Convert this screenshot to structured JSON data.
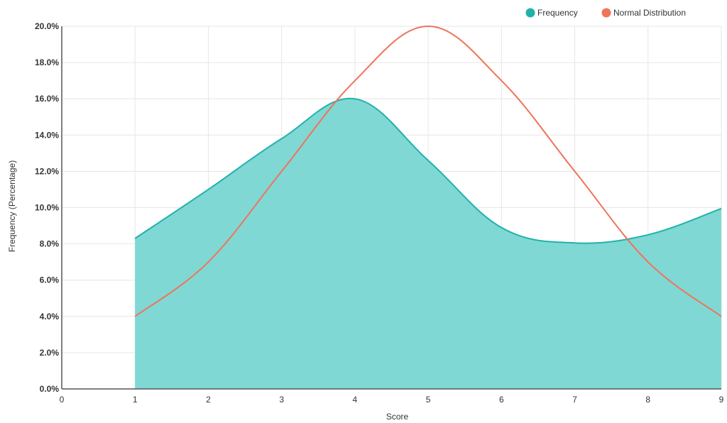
{
  "chart_data": {
    "type": "area",
    "title": "",
    "xlabel": "Score",
    "ylabel": "Frequency (Percentage)",
    "xlim": [
      0,
      9
    ],
    "ylim": [
      0,
      20
    ],
    "x_ticks": [
      0,
      1,
      2,
      3,
      4,
      5,
      6,
      7,
      8,
      9
    ],
    "y_ticks": [
      0,
      2,
      4,
      6,
      8,
      10,
      12,
      14,
      16,
      18,
      20
    ],
    "y_tick_labels": [
      "0.0%",
      "2.0%",
      "4.0%",
      "6.0%",
      "8.0%",
      "10.0%",
      "12.0%",
      "14.0%",
      "16.0%",
      "18.0%",
      "20.0%"
    ],
    "grid": true,
    "legend_position": "top-right",
    "series": [
      {
        "name": "Frequency",
        "type": "area",
        "color": "#20b2aa",
        "fill": "#7fd8d4",
        "x": [
          1,
          2,
          3,
          4,
          5,
          6,
          7,
          8,
          9
        ],
        "y": [
          8.3,
          11.0,
          13.8,
          16.0,
          12.6,
          8.9,
          8.05,
          8.5,
          9.95
        ]
      },
      {
        "name": "Normal Distribution",
        "type": "line",
        "color": "#f0735a",
        "x": [
          1,
          2,
          3,
          4,
          5,
          6,
          7,
          8,
          9
        ],
        "y": [
          4.0,
          7.0,
          12.0,
          17.0,
          20.0,
          17.0,
          12.0,
          7.0,
          4.0
        ]
      }
    ]
  }
}
